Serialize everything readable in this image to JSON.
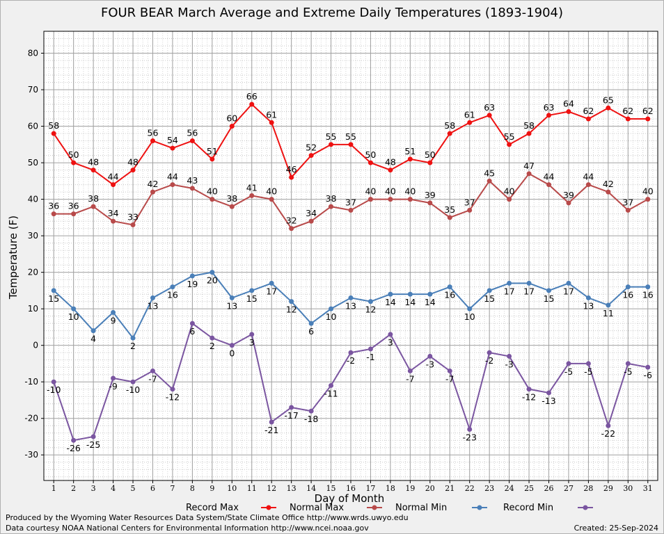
{
  "chart_data": {
    "type": "line",
    "title": "FOUR BEAR March Average and Extreme Daily Temperatures (1893-1904)",
    "xlabel": "Day of Month",
    "ylabel": "Temperature (F)",
    "ylim": [
      -37,
      86
    ],
    "yticks": [
      -30,
      -20,
      -10,
      0,
      10,
      20,
      30,
      40,
      50,
      60,
      70,
      80
    ],
    "grid": true,
    "legend_position": "bottom",
    "x": [
      1,
      2,
      3,
      4,
      5,
      6,
      7,
      8,
      9,
      10,
      11,
      12,
      13,
      14,
      15,
      16,
      17,
      18,
      19,
      20,
      21,
      22,
      23,
      24,
      25,
      26,
      27,
      28,
      29,
      30,
      31
    ],
    "series": [
      {
        "name": "Record Max",
        "color": "#ee1111",
        "label_pos": "above",
        "values": [
          58,
          50,
          48,
          44,
          48,
          56,
          54,
          56,
          51,
          60,
          66,
          61,
          46,
          52,
          55,
          55,
          50,
          48,
          51,
          50,
          58,
          61,
          63,
          55,
          58,
          63,
          64,
          62,
          65,
          62,
          62
        ]
      },
      {
        "name": "Normal Max",
        "color": "#b84a4a",
        "label_pos": "above",
        "values": [
          36,
          36,
          38,
          34,
          33,
          42,
          44,
          43,
          40,
          38,
          41,
          40,
          32,
          34,
          38,
          37,
          40,
          40,
          40,
          39,
          35,
          37,
          45,
          40,
          47,
          44,
          39,
          44,
          42,
          37,
          40
        ]
      },
      {
        "name": "Normal Min",
        "color": "#4a7fb8",
        "label_pos": "below",
        "values": [
          15,
          10,
          4,
          9,
          2,
          13,
          16,
          19,
          20,
          13,
          15,
          17,
          12,
          6,
          10,
          13,
          12,
          14,
          14,
          14,
          16,
          10,
          15,
          17,
          17,
          15,
          17,
          13,
          11,
          16,
          16
        ]
      },
      {
        "name": "Record Min",
        "color": "#7a55a0",
        "label_pos": "below",
        "values": [
          -10,
          -26,
          -25,
          -9,
          -10,
          -7,
          -12,
          6,
          2,
          0,
          3,
          -21,
          -17,
          -18,
          -11,
          -2,
          -1,
          3,
          -7,
          -3,
          -7,
          -23,
          -2,
          -3,
          -12,
          -13,
          -5,
          -5,
          -22,
          -5,
          -6
        ]
      }
    ]
  },
  "footer": {
    "left_line1": "Produced by the Wyoming Water Resources Data System/State Climate Office http://www.wrds.uwyo.edu",
    "left_line2": "Data courtesy NOAA National Centers for Environmental Information http://www.ncei.noaa.gov",
    "created": "Created:  25-Sep-2024"
  }
}
